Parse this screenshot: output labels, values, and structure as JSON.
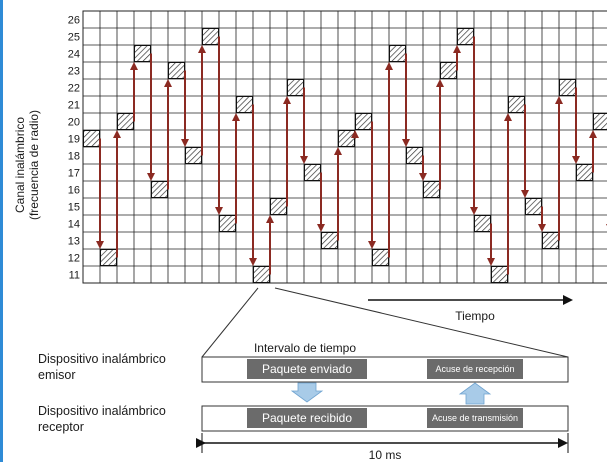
{
  "colors": {
    "accent_bar": "#2f8bd6",
    "grid_line": "#222222",
    "arrow": "#8b2a22",
    "packet_box": "#6b6b6b",
    "ack_box": "#6b6b6b",
    "hint_arrow": "#a8cbe8"
  },
  "grid": {
    "y_axis_label_line1": "Canal inalámbrico",
    "y_axis_label_line2": "(frecuencia de radio)",
    "channels": [
      "26",
      "25",
      "24",
      "23",
      "22",
      "21",
      "20",
      "19",
      "18",
      "17",
      "16",
      "15",
      "14",
      "13",
      "12",
      "11"
    ],
    "x_axis_label": "Tiempo",
    "hop_sequence": [
      19,
      12,
      20,
      24,
      16,
      23,
      18,
      25,
      14,
      21,
      11,
      15,
      22,
      17,
      13,
      19,
      20,
      12,
      24,
      18,
      16,
      23,
      25,
      14,
      11,
      21,
      15,
      13,
      22,
      17,
      20,
      13
    ]
  },
  "detail": {
    "interval_label": "Intervalo de tiempo",
    "sender_line1": "Dispositivo inalámbrico",
    "sender_line2": "emisor",
    "receiver_line1": "Dispositivo inalámbrico",
    "receiver_line2": "receptor",
    "packet_sent": "Paquete enviado",
    "ack_received": "Acuse de recepción",
    "packet_received": "Paquete recibido",
    "ack_transmitted": "Acuse de transmisión",
    "duration": "10 ms"
  }
}
